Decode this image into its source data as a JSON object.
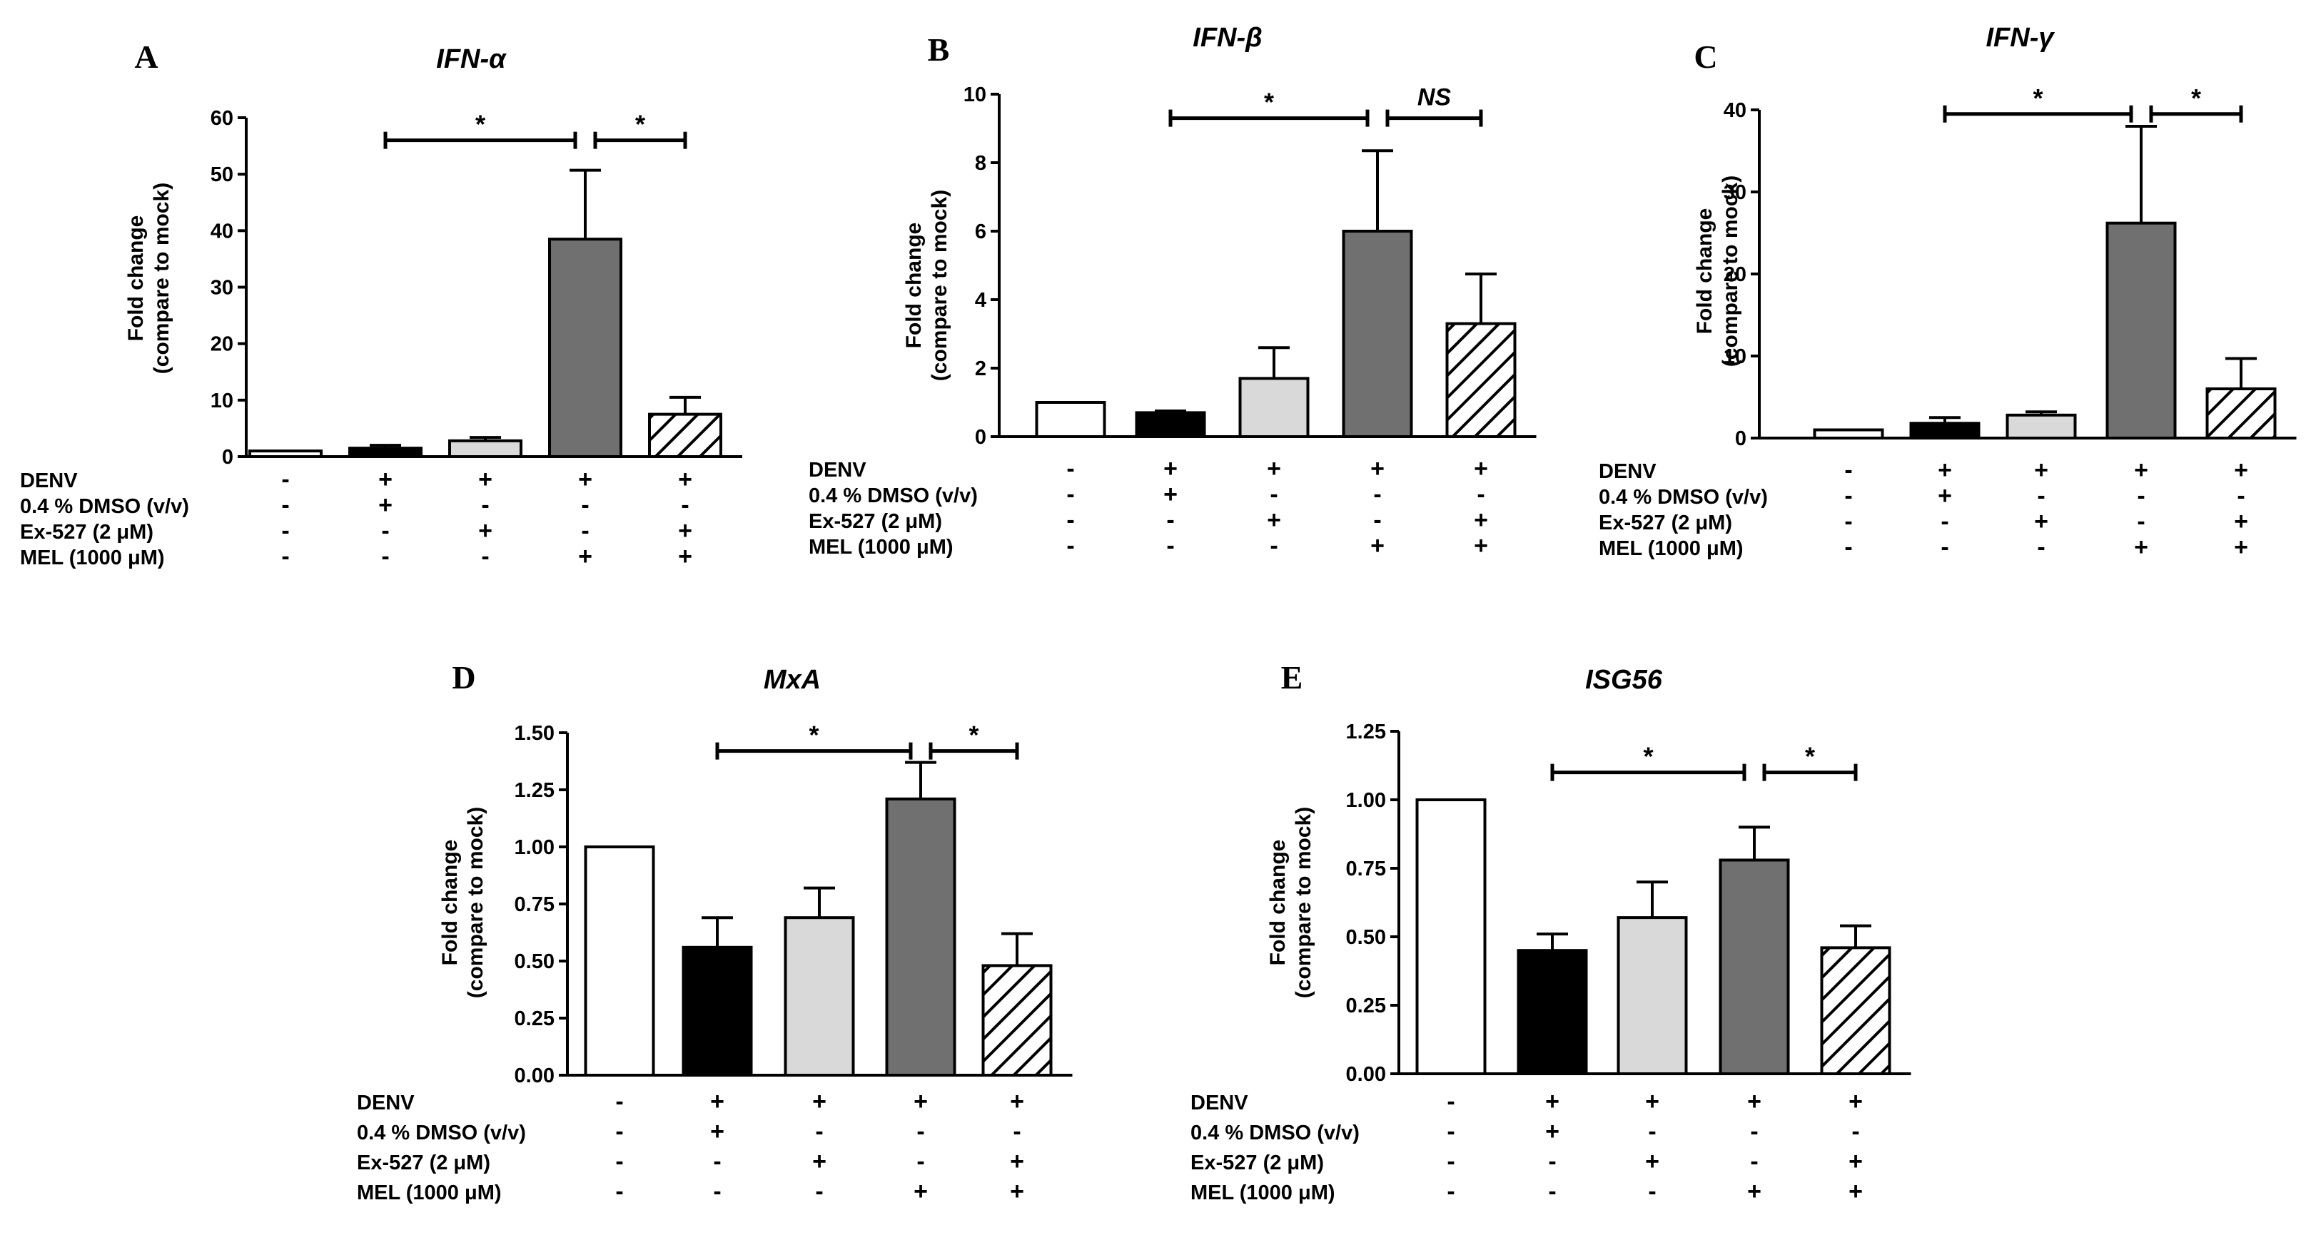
{
  "figure": {
    "condition_rows": [
      "DENV",
      "0.4 % DMSO (v/v)",
      "Ex-527 (2 μM)",
      "MEL (1000 μM)"
    ],
    "group_conditions": [
      [
        "-",
        "-",
        "-",
        "-"
      ],
      [
        "+",
        "+",
        "-",
        "-"
      ],
      [
        "+",
        "-",
        "+",
        "-"
      ],
      [
        "+",
        "-",
        "-",
        "+"
      ],
      [
        "+",
        "-",
        "+",
        "+"
      ]
    ],
    "bar_fills": [
      "white",
      "black",
      "lightgray",
      "darkgray",
      "hatched"
    ],
    "colors": {
      "black": "#000000",
      "lightgray": "#d9d9d9",
      "darkgray": "#707070",
      "white": "#ffffff"
    }
  },
  "chart_data": [
    {
      "panel": "A",
      "type": "bar",
      "title": "IFN-α",
      "ylabel_lines": [
        "Fold change",
        "(compare to mock)"
      ],
      "categories": [
        "mock",
        "DENV + DMSO",
        "DENV + Ex-527",
        "DENV + MEL",
        "DENV + Ex-527 + MEL"
      ],
      "values": [
        1,
        1.5,
        2.8,
        38.5,
        7.5
      ],
      "errors": [
        0,
        0.5,
        0.6,
        12.2,
        3.0
      ],
      "ylim": [
        0,
        60
      ],
      "yticks": [
        "0",
        "10",
        "20",
        "30",
        "40",
        "50",
        "60"
      ],
      "significance": [
        {
          "from": 1,
          "to": 3,
          "y": 56,
          "label": "*"
        },
        {
          "from": 3,
          "to": 4,
          "y": 56,
          "label": "*"
        }
      ]
    },
    {
      "panel": "B",
      "type": "bar",
      "title": "IFN-β",
      "ylabel_lines": [
        "Fold change",
        "(compare to mock)"
      ],
      "categories": [
        "mock",
        "DENV + DMSO",
        "DENV + Ex-527",
        "DENV + MEL",
        "DENV + Ex-527 + MEL"
      ],
      "values": [
        1.0,
        0.7,
        1.7,
        6.0,
        3.3
      ],
      "errors": [
        0,
        0.05,
        0.9,
        2.35,
        1.45
      ],
      "ylim": [
        0,
        10
      ],
      "yticks": [
        "0",
        "2",
        "4",
        "6",
        "8",
        "10"
      ],
      "significance": [
        {
          "from": 1,
          "to": 3,
          "y": 9.3,
          "label": "*"
        },
        {
          "from": 3,
          "to": 4,
          "y": 9.3,
          "label": "NS"
        }
      ]
    },
    {
      "panel": "C",
      "type": "bar",
      "title": "IFN-γ",
      "ylabel_lines": [
        "Fold change",
        "(compare to mock)"
      ],
      "categories": [
        "mock",
        "DENV + DMSO",
        "DENV + Ex-527",
        "DENV + MEL",
        "DENV + Ex-527 + MEL"
      ],
      "values": [
        1,
        1.8,
        2.8,
        26.2,
        6.0
      ],
      "errors": [
        0,
        0.7,
        0.4,
        11.8,
        3.7
      ],
      "ylim": [
        0,
        40
      ],
      "yticks": [
        "0",
        "10",
        "20",
        "30",
        "40"
      ],
      "significance": [
        {
          "from": 1,
          "to": 3,
          "y": 39.5,
          "label": "*"
        },
        {
          "from": 3,
          "to": 4,
          "y": 39.5,
          "label": "*"
        }
      ]
    },
    {
      "panel": "D",
      "type": "bar",
      "title": "MxA",
      "ylabel_lines": [
        "Fold change",
        "(compare to mock)"
      ],
      "categories": [
        "mock",
        "DENV + DMSO",
        "DENV + Ex-527",
        "DENV + MEL",
        "DENV + Ex-527 + MEL"
      ],
      "values": [
        1.0,
        0.56,
        0.69,
        1.21,
        0.48
      ],
      "errors": [
        0,
        0.13,
        0.13,
        0.16,
        0.14
      ],
      "ylim": [
        0,
        1.5
      ],
      "yticks": [
        "0.00",
        "0.25",
        "0.50",
        "0.75",
        "1.00",
        "1.25",
        "1.50"
      ],
      "significance": [
        {
          "from": 1,
          "to": 3,
          "y": 1.42,
          "label": "*"
        },
        {
          "from": 3,
          "to": 4,
          "y": 1.42,
          "label": "*"
        }
      ]
    },
    {
      "panel": "E",
      "type": "bar",
      "title": "ISG56",
      "ylabel_lines": [
        "Fold change",
        "(compare to mock)"
      ],
      "categories": [
        "mock",
        "DENV + DMSO",
        "DENV + Ex-527",
        "DENV + MEL",
        "DENV + Ex-527 + MEL"
      ],
      "values": [
        1.0,
        0.45,
        0.57,
        0.78,
        0.46
      ],
      "errors": [
        0,
        0.06,
        0.13,
        0.12,
        0.08
      ],
      "ylim": [
        0,
        1.25
      ],
      "yticks": [
        "0.00",
        "0.25",
        "0.50",
        "0.75",
        "1.00",
        "1.25"
      ],
      "significance": [
        {
          "from": 1,
          "to": 3,
          "y": 1.1,
          "label": "*"
        },
        {
          "from": 3,
          "to": 4,
          "y": 1.1,
          "label": "*"
        }
      ]
    }
  ]
}
